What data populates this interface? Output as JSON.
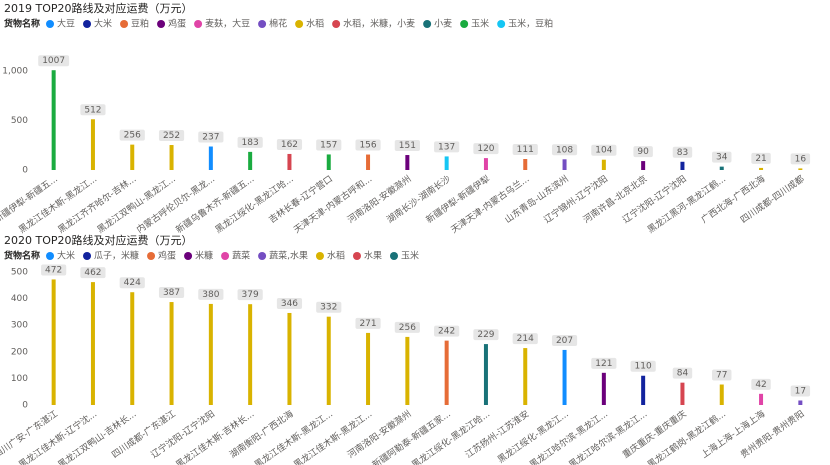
{
  "chart_data": [
    {
      "type": "bar",
      "title": "2019 TOP20路线及对应运费（万元）",
      "legend_title": "货物名称",
      "categories": [
        "新疆伊犁-新疆五...",
        "黑龙江佳木斯-黑龙江...",
        "黑龙江齐齐哈尔-吉林...",
        "黑龙江双鸭山-黑龙江...",
        "内蒙古呼伦贝尔-黑龙...",
        "新疆乌鲁木齐-新疆五...",
        "黑龙江绥化-黑龙江哈...",
        "吉林长春-辽宁营口",
        "天津天津-内蒙古呼和...",
        "河南洛阳-安徽滁州",
        "湖南长沙-湖南长沙",
        "新疆伊犁-新疆伊犁",
        "天津天津-内蒙古乌兰...",
        "山东青岛-山东滨州",
        "辽宁锦州-辽宁沈阳",
        "河南许昌-北京北京",
        "辽宁沈阳-辽宁沈阳",
        "黑龙江黑河-黑龙江鹤...",
        "广西北海-广西北海",
        "四川成都-四川成都"
      ],
      "series": [
        {
          "name": "大豆",
          "color": "#118DFF",
          "values": [
            null,
            null,
            null,
            null,
            237,
            null,
            null,
            null,
            null,
            null,
            null,
            null,
            null,
            null,
            null,
            null,
            null,
            null,
            null,
            null
          ]
        },
        {
          "name": "大米",
          "color": "#12239E",
          "values": [
            null,
            null,
            null,
            null,
            null,
            null,
            null,
            null,
            null,
            null,
            null,
            null,
            null,
            null,
            null,
            null,
            83,
            null,
            null,
            null
          ]
        },
        {
          "name": "豆粕",
          "color": "#E66C37",
          "values": [
            null,
            null,
            null,
            null,
            null,
            null,
            null,
            null,
            156,
            null,
            null,
            null,
            111,
            null,
            null,
            null,
            null,
            null,
            null,
            null
          ]
        },
        {
          "name": "鸡蛋",
          "color": "#6B007B",
          "values": [
            null,
            null,
            null,
            null,
            null,
            null,
            null,
            null,
            null,
            151,
            null,
            null,
            null,
            null,
            null,
            90,
            null,
            null,
            null,
            null
          ]
        },
        {
          "name": "麦麸，大豆",
          "color": "#E044A7",
          "values": [
            null,
            null,
            null,
            null,
            null,
            null,
            null,
            null,
            null,
            null,
            null,
            120,
            null,
            null,
            null,
            null,
            null,
            null,
            null,
            null
          ]
        },
        {
          "name": "棉花",
          "color": "#744EC2",
          "values": [
            null,
            null,
            null,
            null,
            null,
            null,
            null,
            null,
            null,
            null,
            null,
            null,
            null,
            108,
            null,
            null,
            null,
            null,
            null,
            null
          ]
        },
        {
          "name": "水稻",
          "color": "#D9B300",
          "values": [
            null,
            512,
            256,
            252,
            null,
            null,
            null,
            null,
            null,
            null,
            null,
            null,
            null,
            null,
            104,
            null,
            null,
            null,
            21,
            16
          ]
        },
        {
          "name": "水稻，米糠，小麦",
          "color": "#D64550",
          "values": [
            null,
            null,
            null,
            null,
            null,
            null,
            162,
            null,
            null,
            null,
            null,
            null,
            null,
            null,
            null,
            null,
            null,
            null,
            null,
            null
          ]
        },
        {
          "name": "小麦",
          "color": "#197278",
          "values": [
            null,
            null,
            null,
            null,
            null,
            null,
            null,
            null,
            null,
            null,
            null,
            null,
            null,
            null,
            null,
            null,
            null,
            34,
            null,
            null
          ]
        },
        {
          "name": "玉米",
          "color": "#1AAB40",
          "values": [
            1007,
            null,
            null,
            null,
            null,
            183,
            null,
            157,
            null,
            null,
            null,
            null,
            null,
            null,
            null,
            null,
            null,
            null,
            null,
            null
          ]
        },
        {
          "name": "玉米，豆粕",
          "color": "#15C6F4",
          "values": [
            null,
            null,
            null,
            null,
            null,
            null,
            null,
            null,
            null,
            null,
            137,
            null,
            null,
            null,
            null,
            null,
            null,
            null,
            null,
            null
          ]
        }
      ],
      "ylim": [
        0,
        1100
      ],
      "yticks": [
        0,
        500,
        {
          "value": 1000,
          "label": "1,000"
        }
      ],
      "grid": false
    },
    {
      "type": "bar",
      "title": "2020 TOP20路线及对应运费（万元）",
      "legend_title": "货物名称",
      "categories": [
        "四川广安-广东湛江",
        "黑龙江佳木斯-辽宁沈...",
        "黑龙江双鸭山-吉林长...",
        "四川成都-广东湛江",
        "辽宁沈阳-辽宁沈阳",
        "黑龙江佳木斯-吉林长...",
        "湖南衡阳-广西北海",
        "黑龙江佳木斯-黑龙江...",
        "黑龙江佳木斯-黑龙江...",
        "河南洛阳-安徽滁州",
        "新疆阿勒泰-新疆五家...",
        "黑龙江绥化-黑龙江哈...",
        "江苏扬州-江苏淮安",
        "黑龙江绥化-黑龙江...",
        "黑龙江哈尔滨-黑龙江...",
        "黑龙江哈尔滨-黑龙江...",
        "重庆重庆-重庆重庆",
        "黑龙江鹤岗-黑龙江鹤...",
        "上海上海-上海上海",
        "贵州贵阳-贵州贵阳"
      ],
      "series": [
        {
          "name": "大米",
          "color": "#118DFF",
          "values": [
            null,
            null,
            null,
            null,
            null,
            null,
            null,
            null,
            null,
            null,
            null,
            null,
            null,
            207,
            null,
            null,
            null,
            null,
            null,
            null
          ]
        },
        {
          "name": "瓜子，米糠",
          "color": "#12239E",
          "values": [
            null,
            null,
            null,
            null,
            null,
            null,
            null,
            null,
            null,
            null,
            null,
            null,
            null,
            null,
            null,
            110,
            null,
            null,
            null,
            null
          ]
        },
        {
          "name": "鸡蛋",
          "color": "#E66C37",
          "values": [
            null,
            null,
            null,
            null,
            null,
            null,
            null,
            null,
            null,
            null,
            242,
            null,
            null,
            null,
            null,
            null,
            null,
            null,
            null,
            null
          ]
        },
        {
          "name": "米糠",
          "color": "#6B007B",
          "values": [
            null,
            null,
            null,
            null,
            null,
            null,
            null,
            null,
            null,
            null,
            null,
            null,
            null,
            null,
            121,
            null,
            null,
            null,
            null,
            null
          ]
        },
        {
          "name": "蔬菜",
          "color": "#E044A7",
          "values": [
            null,
            null,
            null,
            null,
            null,
            null,
            null,
            null,
            null,
            null,
            null,
            null,
            null,
            null,
            null,
            null,
            null,
            null,
            42,
            null
          ]
        },
        {
          "name": "蔬菜,水果",
          "color": "#744EC2",
          "values": [
            null,
            null,
            null,
            null,
            null,
            null,
            null,
            null,
            null,
            null,
            null,
            null,
            null,
            null,
            null,
            null,
            null,
            null,
            null,
            17
          ]
        },
        {
          "name": "水稻",
          "color": "#D9B300",
          "values": [
            472,
            462,
            424,
            387,
            380,
            379,
            346,
            332,
            271,
            256,
            null,
            null,
            214,
            null,
            null,
            null,
            null,
            77,
            null,
            null
          ]
        },
        {
          "name": "水果",
          "color": "#D64550",
          "values": [
            null,
            null,
            null,
            null,
            null,
            null,
            null,
            null,
            null,
            null,
            null,
            null,
            null,
            null,
            null,
            null,
            84,
            null,
            null,
            null
          ]
        },
        {
          "name": "玉米",
          "color": "#197278",
          "values": [
            null,
            null,
            null,
            null,
            null,
            null,
            null,
            null,
            null,
            null,
            null,
            229,
            null,
            null,
            null,
            null,
            null,
            null,
            null,
            null
          ]
        }
      ],
      "ylim": [
        0,
        500
      ],
      "yticks": [
        0,
        100,
        200,
        300,
        400,
        500
      ],
      "grid": false
    }
  ]
}
